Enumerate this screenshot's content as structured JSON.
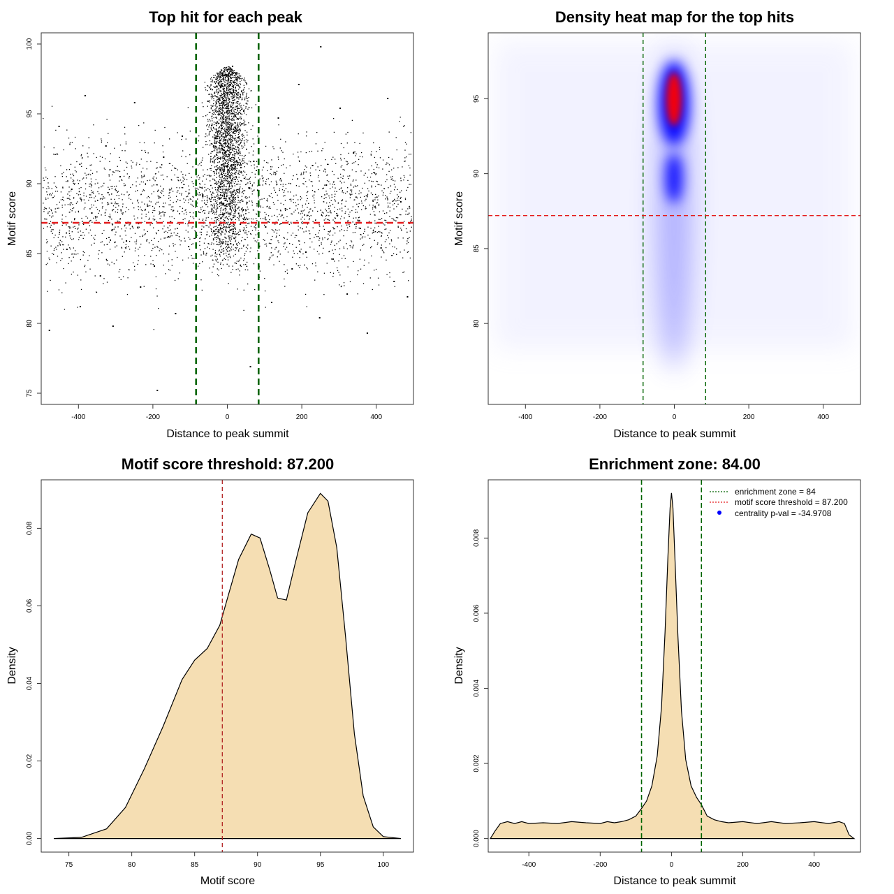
{
  "chart_data": [
    {
      "type": "scatter",
      "title": "Top hit for each peak",
      "xlabel": "Distance to peak summit",
      "ylabel": "Motif score",
      "xlim": [
        -500,
        500
      ],
      "ylim": [
        74.2,
        100.8
      ],
      "xticks": [
        -400,
        -200,
        0,
        200,
        400
      ],
      "yticks": [
        75,
        80,
        85,
        90,
        95,
        100
      ],
      "point_color": "#000000",
      "reference_lines": [
        {
          "orientation": "vertical",
          "value": -84,
          "color": "#006400",
          "style": "dashed"
        },
        {
          "orientation": "vertical",
          "value": 84,
          "color": "#006400",
          "style": "dashed"
        },
        {
          "orientation": "horizontal",
          "value": 87.2,
          "color": "#e41a1c",
          "style": "dashed"
        }
      ],
      "points": [
        [
          -452,
          94.1
        ],
        [
          -431,
          85.3
        ],
        [
          -418,
          89.6
        ],
        [
          -395,
          81.2
        ],
        [
          -382,
          96.3
        ],
        [
          -364,
          87.9
        ],
        [
          -341,
          83.4
        ],
        [
          -326,
          92.7
        ],
        [
          -307,
          79.8
        ],
        [
          -288,
          90.5
        ],
        [
          -271,
          85.9
        ],
        [
          -249,
          95.8
        ],
        [
          -233,
          82.6
        ],
        [
          -214,
          88.4
        ],
        [
          -196,
          84.1
        ],
        [
          -171,
          91.9
        ],
        [
          -158,
          86.2
        ],
        [
          -139,
          80.7
        ],
        [
          -121,
          93.4
        ],
        [
          -104,
          85.5
        ],
        [
          -66,
          89.1
        ],
        [
          -52,
          95.9
        ],
        [
          -41,
          92.3
        ],
        [
          -33,
          86.4
        ],
        [
          -24,
          97.2
        ],
        [
          -18,
          91.0
        ],
        [
          -11,
          94.6
        ],
        [
          -5,
          88.8
        ],
        [
          0,
          96.5
        ],
        [
          4,
          92.1
        ],
        [
          9,
          85.7
        ],
        [
          14,
          98.4
        ],
        [
          21,
          90.3
        ],
        [
          27,
          93.8
        ],
        [
          35,
          87.1
        ],
        [
          44,
          95.2
        ],
        [
          58,
          89.7
        ],
        [
          71,
          91.6
        ],
        [
          103,
          86.9
        ],
        [
          119,
          81.5
        ],
        [
          137,
          94.7
        ],
        [
          156,
          88.2
        ],
        [
          174,
          83.9
        ],
        [
          192,
          97.1
        ],
        [
          211,
          85.1
        ],
        [
          229,
          91.3
        ],
        [
          248,
          80.4
        ],
        [
          266,
          89.9
        ],
        [
          284,
          84.6
        ],
        [
          303,
          95.4
        ],
        [
          322,
          82.1
        ],
        [
          339,
          92.2
        ],
        [
          357,
          86.8
        ],
        [
          376,
          79.3
        ],
        [
          394,
          90.8
        ],
        [
          413,
          85.4
        ],
        [
          431,
          96.1
        ],
        [
          448,
          83.0
        ],
        [
          466,
          88.7
        ],
        [
          484,
          81.9
        ],
        [
          -188,
          75.2
        ],
        [
          62,
          76.9
        ],
        [
          -478,
          79.5
        ],
        [
          251,
          99.8
        ]
      ]
    },
    {
      "type": "heatmap",
      "title": "Density heat map for the top hits",
      "xlabel": "Distance to peak summit",
      "ylabel": "Motif score",
      "xlim": [
        -500,
        500
      ],
      "ylim": [
        74.6,
        99.4
      ],
      "xticks": [
        -400,
        -200,
        0,
        200,
        400
      ],
      "yticks": [
        80,
        85,
        90,
        95
      ],
      "colors": [
        "#ffffff",
        "#0000ff",
        "#ff0000"
      ],
      "density_centers": [
        {
          "x": 0,
          "y": 95.5,
          "level": "high"
        },
        {
          "x": 0,
          "y": 90.5,
          "level": "medium"
        }
      ],
      "reference_lines": [
        {
          "orientation": "vertical",
          "value": -84,
          "color": "#006400",
          "style": "dashed"
        },
        {
          "orientation": "vertical",
          "value": 84,
          "color": "#006400",
          "style": "dashed"
        },
        {
          "orientation": "horizontal",
          "value": 87.2,
          "color": "#e41a1c",
          "style": "dashed"
        }
      ]
    },
    {
      "type": "area",
      "title": "Motif score threshold: 87.200",
      "xlabel": "Motif score",
      "ylabel": "Density",
      "xlim": [
        72.8,
        102.4
      ],
      "ylim": [
        -0.0035,
        0.0925
      ],
      "xticks": [
        75,
        80,
        85,
        90,
        95,
        100
      ],
      "yticks": [
        "0.00",
        "0.02",
        "0.04",
        "0.06",
        "0.08"
      ],
      "fill_color": "#f5deb3",
      "x": [
        73.8,
        76,
        78,
        79.5,
        81,
        82.5,
        84,
        85,
        86,
        87,
        87.7,
        88.5,
        89.5,
        90.2,
        91,
        91.6,
        92.3,
        93,
        94,
        95,
        95.6,
        96.3,
        97,
        97.7,
        98.4,
        99.2,
        100,
        101.4
      ],
      "values": [
        0,
        0.0003,
        0.0025,
        0.008,
        0.018,
        0.029,
        0.041,
        0.046,
        0.049,
        0.055,
        0.063,
        0.072,
        0.0785,
        0.0775,
        0.069,
        0.062,
        0.0615,
        0.071,
        0.084,
        0.089,
        0.087,
        0.075,
        0.052,
        0.027,
        0.011,
        0.003,
        0.0005,
        0
      ],
      "reference_lines": [
        {
          "orientation": "vertical",
          "value": 87.2,
          "color": "#b22222",
          "style": "dashed"
        }
      ]
    },
    {
      "type": "area",
      "title": "Enrichment zone: 84.00",
      "xlabel": "Distance to peak summit",
      "ylabel": "Density",
      "xlim": [
        -514,
        530
      ],
      "ylim": [
        -0.00036,
        0.00955
      ],
      "xticks": [
        -400,
        -200,
        0,
        200,
        400
      ],
      "yticks": [
        "0.000",
        "0.002",
        "0.004",
        "0.006",
        "0.008"
      ],
      "fill_color": "#f5deb3",
      "x": [
        -508,
        -495,
        -480,
        -460,
        -440,
        -420,
        -400,
        -360,
        -320,
        -280,
        -240,
        -200,
        -180,
        -160,
        -140,
        -120,
        -100,
        -84,
        -70,
        -55,
        -40,
        -28,
        -18,
        -10,
        -4,
        0,
        4,
        10,
        18,
        28,
        40,
        55,
        70,
        84,
        100,
        120,
        140,
        160,
        200,
        240,
        280,
        320,
        360,
        400,
        440,
        470,
        485,
        498,
        512
      ],
      "values": [
        0,
        0.0002,
        0.0004,
        0.00045,
        0.0004,
        0.00045,
        0.0004,
        0.00042,
        0.0004,
        0.00045,
        0.00042,
        0.0004,
        0.00045,
        0.00042,
        0.00045,
        0.0005,
        0.0006,
        0.0008,
        0.001,
        0.0014,
        0.0022,
        0.0035,
        0.0055,
        0.0075,
        0.0088,
        0.0092,
        0.0088,
        0.0074,
        0.0054,
        0.0034,
        0.0021,
        0.0014,
        0.0011,
        0.0009,
        0.0006,
        0.0005,
        0.00045,
        0.00042,
        0.00045,
        0.0004,
        0.00045,
        0.0004,
        0.00042,
        0.00045,
        0.0004,
        0.00045,
        0.0004,
        0.0001,
        0
      ],
      "reference_lines": [
        {
          "orientation": "vertical",
          "value": -84,
          "color": "#006400",
          "style": "dashed"
        },
        {
          "orientation": "vertical",
          "value": 84,
          "color": "#006400",
          "style": "dashed"
        }
      ],
      "legend": {
        "position": "top-right",
        "entries": [
          {
            "label": "enrichment zone = 84",
            "color": "#006400",
            "style": "dotted-line"
          },
          {
            "label": "motif score threshold = 87.200",
            "color": "#e41a1c",
            "style": "dotted-line"
          },
          {
            "label": "centrality p-val = -34.9708",
            "color": "#0000ff",
            "style": "point"
          }
        ]
      }
    }
  ]
}
